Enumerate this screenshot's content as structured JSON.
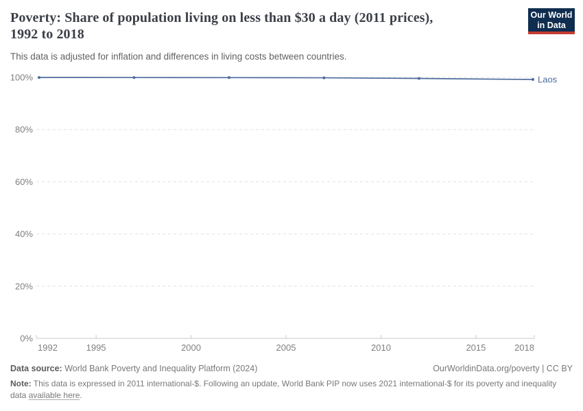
{
  "header": {
    "title": "Poverty: Share of population living on less than $30 a day (2011 prices), 1992 to 2018",
    "subtitle": "This data is adjusted for inflation and differences in living costs between countries.",
    "logo": {
      "line1": "Our World",
      "line2": "in Data"
    }
  },
  "chart_data": {
    "type": "line",
    "title": "Poverty: Share of population living on less than $30 a day (2011 prices), 1992 to 2018",
    "xlabel": "",
    "ylabel": "",
    "xlim": [
      1992,
      2018
    ],
    "ylim": [
      0,
      100
    ],
    "x_ticks": [
      1992,
      1995,
      2000,
      2005,
      2010,
      2015,
      2018
    ],
    "y_ticks": [
      0,
      20,
      40,
      60,
      80,
      100
    ],
    "y_suffix": "%",
    "grid": "horizontal-dashed",
    "end_label": "Laos",
    "series": [
      {
        "name": "Laos",
        "color": "#4C6A9C",
        "x": [
          1992,
          1997,
          2002,
          2007,
          2012,
          2018
        ],
        "y": [
          99.97,
          99.95,
          99.92,
          99.85,
          99.6,
          99.2
        ]
      }
    ]
  },
  "footer": {
    "data_source_label": "Data source:",
    "data_source": " World Bank Poverty and Inequality Platform (2024)",
    "attribution": "OurWorldinData.org/poverty | CC BY",
    "note_label": "Note:",
    "note_before_link": " This data is expressed in 2011 international-$. Following an update, World Bank PIP now uses 2021 international-$ for its poverty and inequality data ",
    "note_link": "available here",
    "note_after_link": "."
  },
  "colors": {
    "title": "#3b3f46",
    "axis_text": "#7f7f7f",
    "gridline": "#e0e0e0",
    "axis_line": "#c9c9c9",
    "series": "#4C6A9C",
    "logo_bg": "#102d50",
    "logo_accent": "#c53c33"
  }
}
